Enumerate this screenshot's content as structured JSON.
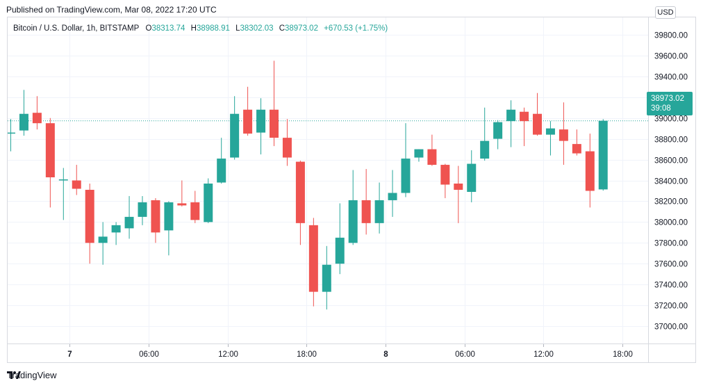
{
  "header": {
    "published": "Published on TradingView.com, Mar 08, 2022 17:20 UTC"
  },
  "legend": {
    "symbol": "Bitcoin / U.S. Dollar, 1h, BITSTAMP",
    "o_label": "O",
    "o_value": "38313.74",
    "h_label": "H",
    "h_value": "38988.91",
    "l_label": "L",
    "l_value": "38302.03",
    "c_label": "C",
    "c_value": "38973.02",
    "change": "+670.53 (+1.75%)"
  },
  "currency_button": "USD",
  "price_tag": {
    "price": "38973.02",
    "countdown": "39:08"
  },
  "footer": {
    "brand": "TradingView"
  },
  "colors": {
    "up": "#26a69a",
    "down": "#ef5350",
    "grid": "#f0f3fa",
    "last_price_line": "#26a69a",
    "axis_text": "#131722"
  },
  "chart_data": {
    "type": "candlestick",
    "title": "",
    "ylim": [
      36900,
      39900
    ],
    "y_ticks": [
      37000,
      37200,
      37400,
      37600,
      37800,
      38000,
      38200,
      38400,
      38600,
      38800,
      39000,
      39200,
      39400,
      39600,
      39800
    ],
    "y_tick_labels": [
      "37000.00",
      "37200.00",
      "37400.00",
      "37600.00",
      "37800.00",
      "38000.00",
      "38200.00",
      "38400.00",
      "38600.00",
      "38800.00",
      "39000.00",
      "39200.00",
      "39400.00",
      "39600.00",
      "39800.00"
    ],
    "x_ticks": [
      {
        "label": "7",
        "bold": true,
        "index": 4.5
      },
      {
        "label": "06:00",
        "index": 10.5
      },
      {
        "label": "12:00",
        "index": 16.5
      },
      {
        "label": "18:00",
        "index": 22.5
      },
      {
        "label": "8",
        "bold": true,
        "index": 28.5
      },
      {
        "label": "06:00",
        "index": 34.5
      },
      {
        "label": "12:00",
        "index": 40.5
      },
      {
        "label": "18:00",
        "index": 46.5
      }
    ],
    "last_price": 38973.02,
    "candles": [
      {
        "o": 38860,
        "h": 38990,
        "l": 38680,
        "c": 38860
      },
      {
        "o": 38880,
        "h": 39270,
        "l": 38830,
        "c": 39040
      },
      {
        "o": 39050,
        "h": 39210,
        "l": 38890,
        "c": 38950
      },
      {
        "o": 38950,
        "h": 39000,
        "l": 38140,
        "c": 38430
      },
      {
        "o": 38400,
        "h": 38520,
        "l": 38020,
        "c": 38410
      },
      {
        "o": 38400,
        "h": 38550,
        "l": 38260,
        "c": 38320
      },
      {
        "o": 38310,
        "h": 38370,
        "l": 37600,
        "c": 37800
      },
      {
        "o": 37800,
        "h": 38000,
        "l": 37590,
        "c": 37860
      },
      {
        "o": 37900,
        "h": 38000,
        "l": 37780,
        "c": 37970
      },
      {
        "o": 37940,
        "h": 38250,
        "l": 37840,
        "c": 38050
      },
      {
        "o": 38050,
        "h": 38250,
        "l": 37970,
        "c": 38190
      },
      {
        "o": 38210,
        "h": 38230,
        "l": 37800,
        "c": 37900
      },
      {
        "o": 37920,
        "h": 38200,
        "l": 37680,
        "c": 38190
      },
      {
        "o": 38180,
        "h": 38400,
        "l": 38150,
        "c": 38160
      },
      {
        "o": 38190,
        "h": 38300,
        "l": 37990,
        "c": 38020
      },
      {
        "o": 38000,
        "h": 38420,
        "l": 37990,
        "c": 38370
      },
      {
        "o": 38380,
        "h": 38810,
        "l": 38370,
        "c": 38610
      },
      {
        "o": 38620,
        "h": 39210,
        "l": 38600,
        "c": 39040
      },
      {
        "o": 39080,
        "h": 39300,
        "l": 38830,
        "c": 38850
      },
      {
        "o": 38860,
        "h": 39190,
        "l": 38650,
        "c": 39080
      },
      {
        "o": 39080,
        "h": 39550,
        "l": 38730,
        "c": 38810
      },
      {
        "o": 38810,
        "h": 38990,
        "l": 38540,
        "c": 38620
      },
      {
        "o": 38580,
        "h": 38590,
        "l": 37780,
        "c": 37990
      },
      {
        "o": 37970,
        "h": 38040,
        "l": 37190,
        "c": 37330
      },
      {
        "o": 37330,
        "h": 37770,
        "l": 37160,
        "c": 37590
      },
      {
        "o": 37600,
        "h": 38180,
        "l": 37500,
        "c": 37850
      },
      {
        "o": 37800,
        "h": 38500,
        "l": 37780,
        "c": 38210
      },
      {
        "o": 38210,
        "h": 38510,
        "l": 37880,
        "c": 37990
      },
      {
        "o": 37990,
        "h": 38380,
        "l": 37890,
        "c": 38210
      },
      {
        "o": 38210,
        "h": 38500,
        "l": 38050,
        "c": 38280
      },
      {
        "o": 38280,
        "h": 38950,
        "l": 38240,
        "c": 38610
      },
      {
        "o": 38620,
        "h": 38700,
        "l": 38580,
        "c": 38700
      },
      {
        "o": 38700,
        "h": 38840,
        "l": 38540,
        "c": 38550
      },
      {
        "o": 38550,
        "h": 38560,
        "l": 38230,
        "c": 38360
      },
      {
        "o": 38370,
        "h": 38540,
        "l": 37990,
        "c": 38310
      },
      {
        "o": 38290,
        "h": 38690,
        "l": 38190,
        "c": 38560
      },
      {
        "o": 38610,
        "h": 39100,
        "l": 38590,
        "c": 38780
      },
      {
        "o": 38800,
        "h": 38980,
        "l": 38700,
        "c": 38960
      },
      {
        "o": 38970,
        "h": 39170,
        "l": 38720,
        "c": 39080
      },
      {
        "o": 39060,
        "h": 39100,
        "l": 38730,
        "c": 38970
      },
      {
        "o": 39040,
        "h": 39240,
        "l": 38830,
        "c": 38840
      },
      {
        "o": 38840,
        "h": 38970,
        "l": 38640,
        "c": 38900
      },
      {
        "o": 38890,
        "h": 39150,
        "l": 38550,
        "c": 38780
      },
      {
        "o": 38750,
        "h": 38890,
        "l": 38640,
        "c": 38660
      },
      {
        "o": 38680,
        "h": 38850,
        "l": 38140,
        "c": 38300
      },
      {
        "o": 38313.74,
        "h": 38988.91,
        "l": 38302.03,
        "c": 38973.02
      }
    ]
  }
}
